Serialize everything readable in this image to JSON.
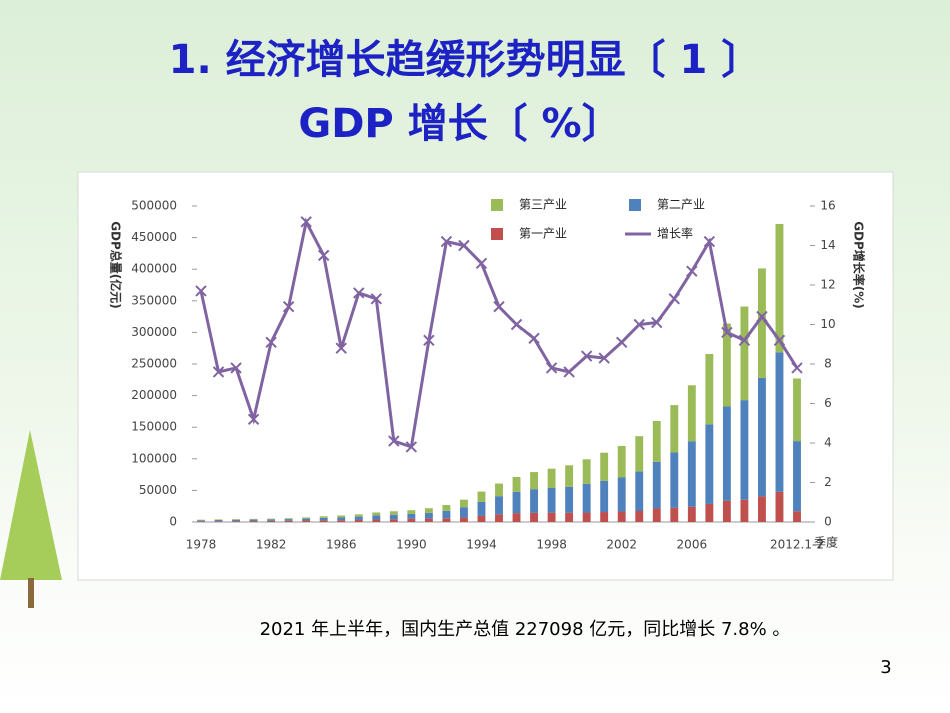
{
  "title_line1": "1.  经济增长趋缓形势明显〔 1 〕",
  "title_line2": "GDP 增长〔 %〕",
  "caption": "2021 年上半年，国内生产总值 227098 亿元，同比增长 7.8% 。",
  "page_number": "3",
  "chart_data": {
    "type": "bar-line",
    "y_label": "GDP总量(亿元)",
    "y2_label": "GDP增长率(%)",
    "x_label": "季度",
    "categories": [
      "1978",
      null,
      null,
      null,
      "1982",
      null,
      null,
      null,
      "1986",
      null,
      null,
      null,
      "1990",
      null,
      null,
      null,
      "1994",
      null,
      null,
      null,
      "1998",
      null,
      null,
      null,
      "2002",
      null,
      null,
      null,
      "2006",
      null,
      null,
      null,
      null,
      null,
      "2012.1-2"
    ],
    "ylim": [
      0,
      500000
    ],
    "yticks": [
      0,
      50000,
      100000,
      150000,
      200000,
      250000,
      300000,
      350000,
      400000,
      450000,
      500000
    ],
    "y2lim": [
      0,
      16
    ],
    "y2ticks": [
      0,
      2,
      4,
      6,
      8,
      10,
      12,
      14,
      16
    ],
    "series": [
      {
        "name": "第一产业",
        "color": "#c0504d",
        "values": [
          1028,
          1270,
          1372,
          1559,
          1777,
          1978,
          2316,
          2564,
          2789,
          3233,
          3865,
          4266,
          5062,
          5342,
          5867,
          6964,
          9573,
          12136,
          14015,
          14442,
          14818,
          14770,
          14945,
          15781,
          16537,
          17382,
          21413,
          22420,
          24040,
          28627,
          33702,
          35226,
          40534,
          47712,
          17000
        ]
      },
      {
        "name": "第二产业",
        "color": "#4f81bd",
        "values": [
          1745,
          1914,
          2192,
          2256,
          2383,
          2646,
          3106,
          3867,
          4493,
          5252,
          6587,
          7278,
          7717,
          9102,
          11700,
          16454,
          22445,
          28679,
          33835,
          37543,
          39004,
          41034,
          45556,
          49512,
          53897,
          62436,
          73904,
          87598,
          103720,
          125831,
          149003,
          157639,
          187581,
          220592,
          111000
        ]
      },
      {
        "name": "第三产业",
        "color": "#9bbb59",
        "values": [
          872,
          879,
          982,
          1077,
          1163,
          1338,
          1786,
          2585,
          2994,
          3574,
          4590,
          5448,
          5888,
          7337,
          9357,
          11916,
          16180,
          19978,
          23326,
          26988,
          30580,
          33873,
          38714,
          44362,
          49899,
          56005,
          64561,
          74919,
          88555,
          111352,
          131340,
          148038,
          173087,
          203260,
          99098
        ]
      },
      {
        "name": "增长率",
        "color": "#8064a2",
        "axis": "y2",
        "values": [
          11.7,
          7.6,
          7.8,
          5.2,
          9.1,
          10.9,
          15.2,
          13.5,
          8.8,
          11.6,
          11.3,
          4.1,
          3.8,
          9.2,
          14.2,
          14.0,
          13.1,
          10.9,
          10.0,
          9.3,
          7.8,
          7.6,
          8.4,
          8.3,
          9.1,
          10.0,
          10.1,
          11.3,
          12.7,
          14.2,
          9.6,
          9.2,
          10.4,
          9.2,
          7.8
        ]
      }
    ]
  }
}
